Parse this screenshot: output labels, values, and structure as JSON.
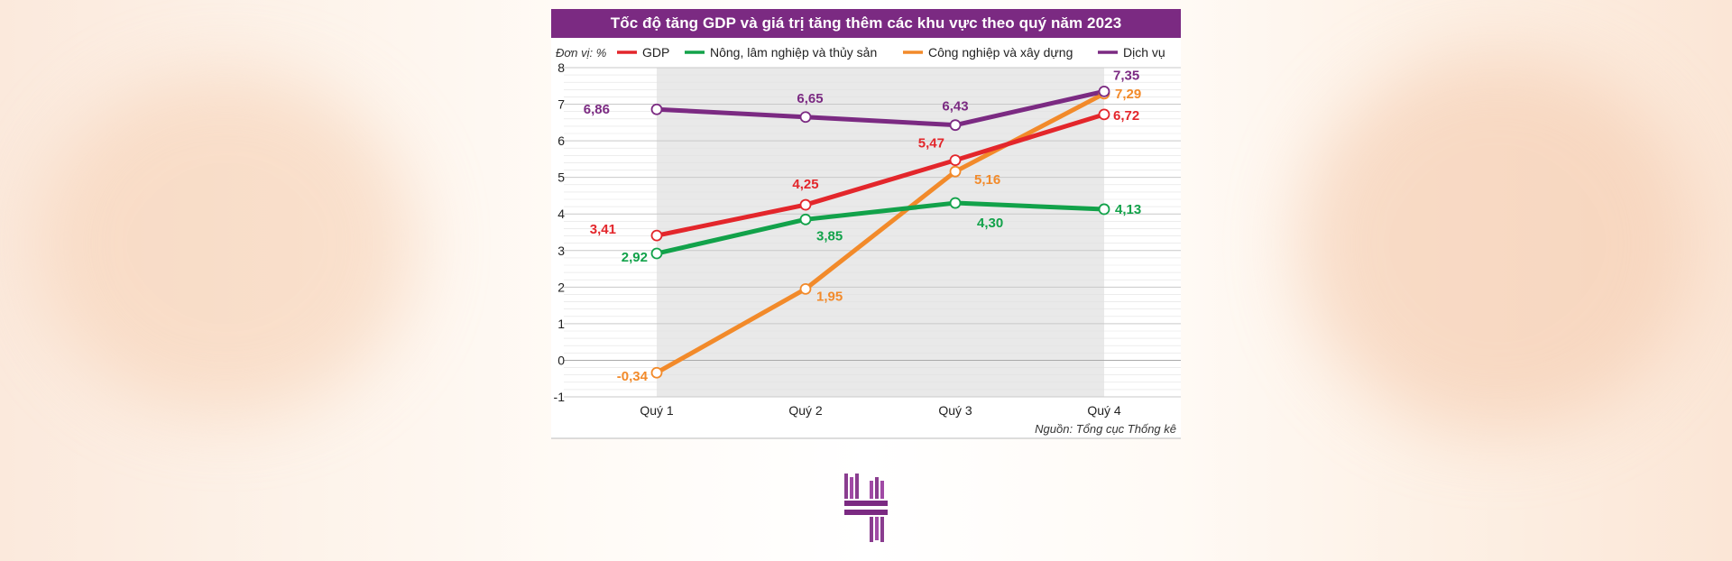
{
  "chart_data": {
    "type": "line",
    "title": "Tốc độ tăng GDP và giá trị tăng thêm các khu vực theo quý năm 2023",
    "unit_label": "Đơn vị: %",
    "source": "Nguồn: Tổng cục Thống kê",
    "categories": [
      "Quý 1",
      "Quý 2",
      "Quý 3",
      "Quý 4"
    ],
    "ylim": [
      -1,
      8
    ],
    "yticks": [
      -1,
      0,
      1,
      2,
      3,
      4,
      5,
      6,
      7,
      8
    ],
    "grid": true,
    "legend_position": "top",
    "series": [
      {
        "name": "GDP",
        "color": "#e3262b",
        "values": [
          3.41,
          4.25,
          5.47,
          6.72
        ],
        "labels": [
          "3,41",
          "4,25",
          "5,47",
          "6,72"
        ]
      },
      {
        "name": "Nông, lâm nghiệp và thủy sản",
        "color": "#12a24a",
        "values": [
          2.92,
          3.85,
          4.3,
          4.13
        ],
        "labels": [
          "2,92",
          "3,85",
          "4,30",
          "4,13"
        ]
      },
      {
        "name": "Công nghiệp và xây dựng",
        "color": "#f28a2a",
        "values": [
          -0.34,
          1.95,
          5.16,
          7.29
        ],
        "labels": [
          "-0,34",
          "1,95",
          "5,16",
          "7,29"
        ]
      },
      {
        "name": "Dịch vụ",
        "color": "#7b2a82",
        "values": [
          6.86,
          6.65,
          6.43,
          7.35
        ],
        "labels": [
          "6,86",
          "6,65",
          "6,43",
          "7,35"
        ]
      }
    ]
  }
}
